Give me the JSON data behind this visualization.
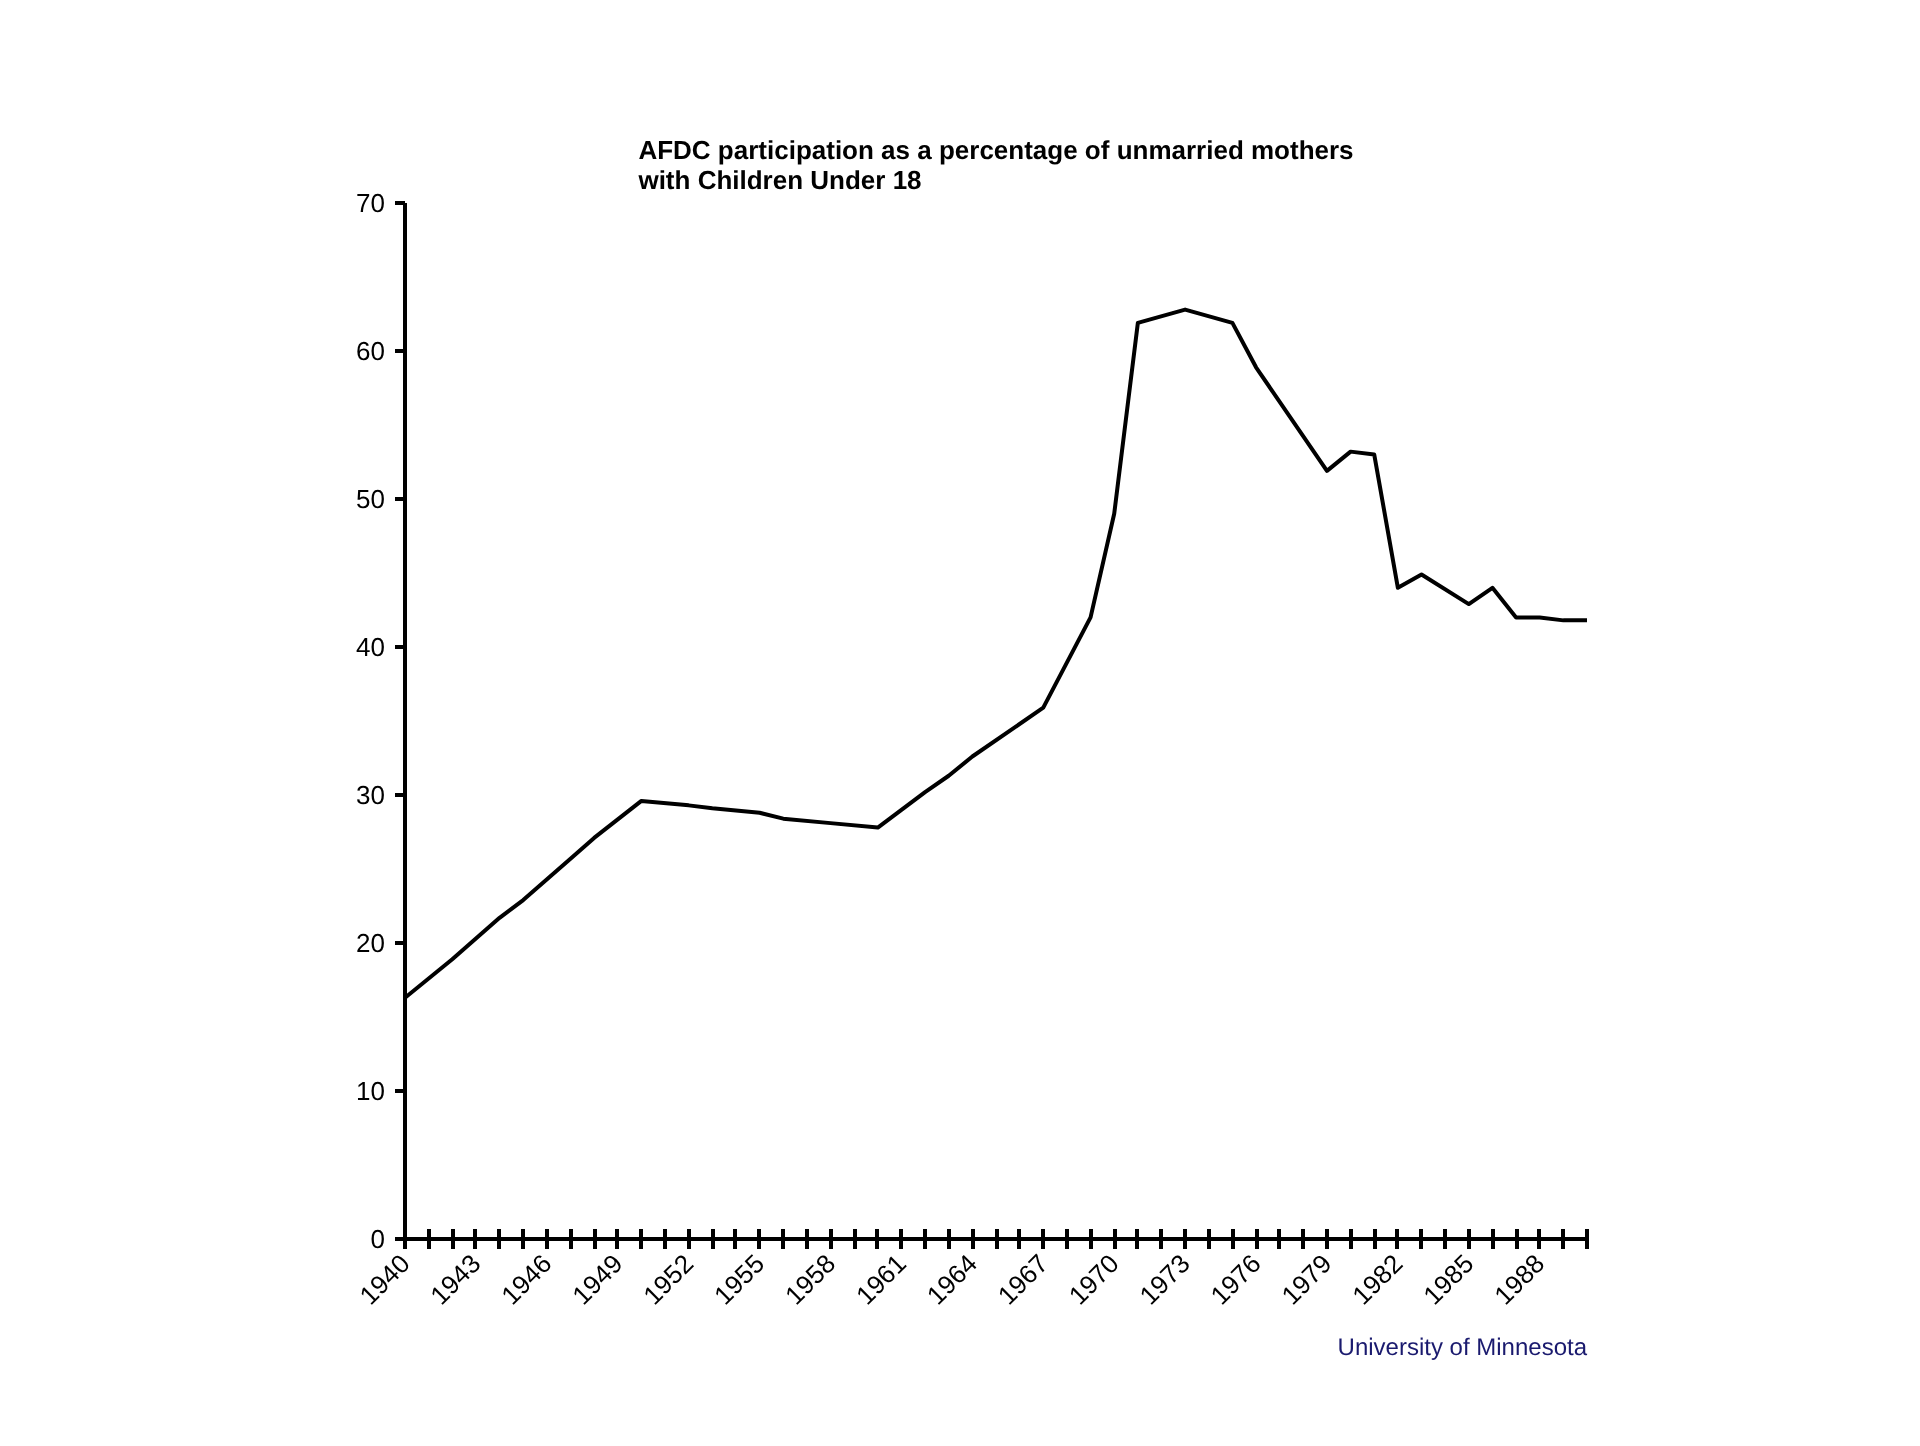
{
  "chart_data": {
    "type": "line",
    "title": "AFDC participation as a percentage of unmarried mothers with Children Under 18",
    "x": [
      1940,
      1942,
      1944,
      1945,
      1947,
      1948,
      1950,
      1952,
      1953,
      1955,
      1956,
      1958,
      1960,
      1962,
      1963,
      1964,
      1967,
      1969,
      1970,
      1971,
      1973,
      1975,
      1976,
      1979,
      1980,
      1981,
      1982,
      1983,
      1985,
      1986,
      1987,
      1988,
      1989,
      1990
    ],
    "series": [
      {
        "color": "#000000",
        "values": [
          16.3,
          18.9,
          21.7,
          22.9,
          25.7,
          27.1,
          29.6,
          29.3,
          29.1,
          28.8,
          28.4,
          28.1,
          27.8,
          30.2,
          31.3,
          32.6,
          35.9,
          42.0,
          49.0,
          61.9,
          62.8,
          61.9,
          58.9,
          51.9,
          53.2,
          53.0,
          44.0,
          44.9,
          42.9,
          44.0,
          42.0,
          42.0,
          41.8,
          41.8
        ]
      }
    ],
    "xlim": [
      1940,
      1990
    ],
    "xticks": [
      1940,
      {
        "value": 1941,
        "label": null
      },
      {
        "value": 1942,
        "label": null
      },
      1943,
      {
        "value": 1944,
        "label": null
      },
      {
        "value": 1945,
        "label": null
      },
      1946,
      {
        "value": 1947,
        "label": null
      },
      {
        "value": 1948,
        "label": null
      },
      1949,
      {
        "value": 1950,
        "label": null
      },
      {
        "value": 1951,
        "label": null
      },
      1952,
      {
        "value": 1953,
        "label": null
      },
      {
        "value": 1954,
        "label": null
      },
      1955,
      {
        "value": 1956,
        "label": null
      },
      {
        "value": 1957,
        "label": null
      },
      1958,
      {
        "value": 1959,
        "label": null
      },
      {
        "value": 1960,
        "label": null
      },
      1961,
      {
        "value": 1962,
        "label": null
      },
      {
        "value": 1963,
        "label": null
      },
      1964,
      {
        "value": 1965,
        "label": null
      },
      {
        "value": 1966,
        "label": null
      },
      1967,
      {
        "value": 1968,
        "label": null
      },
      {
        "value": 1969,
        "label": null
      },
      1970,
      {
        "value": 1971,
        "label": null
      },
      {
        "value": 1972,
        "label": null
      },
      1973,
      {
        "value": 1974,
        "label": null
      },
      {
        "value": 1975,
        "label": null
      },
      1976,
      {
        "value": 1977,
        "label": null
      },
      {
        "value": 1978,
        "label": null
      },
      1979,
      {
        "value": 1980,
        "label": null
      },
      {
        "value": 1981,
        "label": null
      },
      1982,
      {
        "value": 1983,
        "label": null
      },
      {
        "value": 1984,
        "label": null
      },
      1985,
      {
        "value": 1986,
        "label": null
      },
      {
        "value": 1987,
        "label": null
      },
      1988,
      {
        "value": 1989,
        "label": null
      },
      {
        "value": 1990,
        "label": null
      }
    ],
    "ylim": [
      0,
      70
    ],
    "yticks": [
      0,
      10,
      20,
      30,
      40,
      50,
      60,
      70
    ],
    "grid": false,
    "marker": "none",
    "line_style": "solid",
    "annotations": [
      "University of Minnesota"
    ]
  }
}
